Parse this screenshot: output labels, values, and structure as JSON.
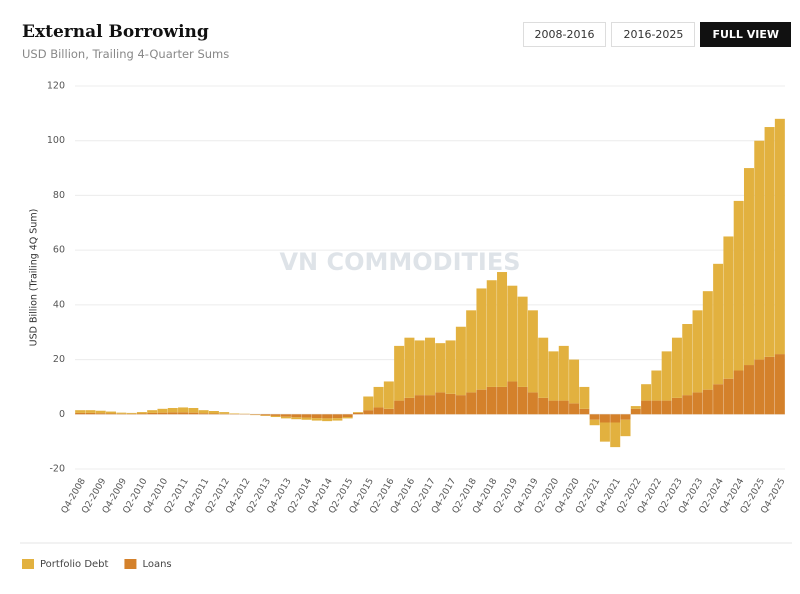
{
  "chart_data": {
    "type": "stacked_bar",
    "title": "External Borrowing",
    "subtitle": "USD Billion, Trailing 4-Quarter Sums",
    "y_label": "USD Billion (Trailing 4Q Sum)",
    "buttons": [
      "2008-2016",
      "2016-2025",
      "FULL VIEW"
    ],
    "active_button": 2,
    "watermark": "VN COMMODITIES",
    "categories": [
      "Q4-2008",
      null,
      "Q2-2009",
      null,
      "Q4-2009",
      null,
      "Q2-2010",
      null,
      "Q4-2010",
      null,
      "Q2-2011",
      null,
      "Q4-2011",
      null,
      "Q2-2012",
      null,
      "Q4-2012",
      null,
      "Q2-2013",
      null,
      "Q4-2013",
      null,
      "Q2-2014",
      null,
      "Q4-2014",
      null,
      "Q2-2015",
      null,
      "Q4-2015",
      null,
      "Q2-2016",
      null,
      "Q4-2016",
      null,
      "Q2-2017",
      null,
      "Q4-2017",
      null,
      "Q2-2018",
      null,
      "Q4-2018",
      null,
      "Q2-2019",
      null,
      "Q4-2019",
      null,
      "Q2-2020",
      null,
      "Q4-2020",
      null,
      "Q2-2021",
      null,
      "Q4-2021",
      null,
      "Q2-2022",
      null,
      "Q4-2022",
      null,
      "Q2-2023",
      null,
      "Q4-2023",
      null,
      "Q2-2024",
      null,
      "Q4-2024",
      null,
      "Q2-2025",
      null,
      "Q4-2025"
    ],
    "series": [
      {
        "name": "Portfolio Debt",
        "color": "#e2b13f",
        "values": [
          1.0,
          1.0,
          0.9,
          0.7,
          0.4,
          0.3,
          0.5,
          1.0,
          1.4,
          1.6,
          1.8,
          1.7,
          1.1,
          0.9,
          0.6,
          0.2,
          0.1,
          -0.1,
          -0.2,
          -0.4,
          -0.6,
          -0.7,
          -0.8,
          -0.9,
          -1.0,
          -0.9,
          -0.5,
          0.3,
          5,
          7.5,
          10,
          20,
          22,
          20,
          21,
          18,
          19.5,
          25,
          30,
          37,
          39,
          42,
          35,
          33,
          30,
          22,
          18,
          20,
          16,
          8,
          -2,
          -7,
          -9,
          -6,
          1,
          6,
          11,
          18,
          22,
          26,
          30,
          36,
          44,
          52,
          62,
          72,
          80,
          84,
          86
        ]
      },
      {
        "name": "Loans",
        "color": "#d4812b",
        "values": [
          0.5,
          0.5,
          0.4,
          0.3,
          0.2,
          0.2,
          0.3,
          0.5,
          0.6,
          0.7,
          0.7,
          0.6,
          0.4,
          0.3,
          0.2,
          0.1,
          0.1,
          -0.2,
          -0.4,
          -0.6,
          -0.9,
          -1.1,
          -1.2,
          -1.4,
          -1.5,
          -1.4,
          -1.0,
          0.5,
          1.5,
          2.5,
          2,
          5,
          6,
          7,
          7,
          8,
          7.5,
          7,
          8,
          9,
          10,
          10,
          12,
          10,
          8,
          6,
          5,
          5,
          4,
          2,
          -2,
          -3,
          -3,
          -2,
          2,
          5,
          5,
          5,
          6,
          7,
          8,
          9,
          11,
          13,
          16,
          18,
          20,
          21,
          22
        ]
      }
    ],
    "stack_order": [
      1,
      0
    ],
    "ylim": [
      -20,
      120
    ],
    "yticks": [
      -20,
      0,
      20,
      40,
      60,
      80,
      100,
      120
    ],
    "grid": true
  }
}
